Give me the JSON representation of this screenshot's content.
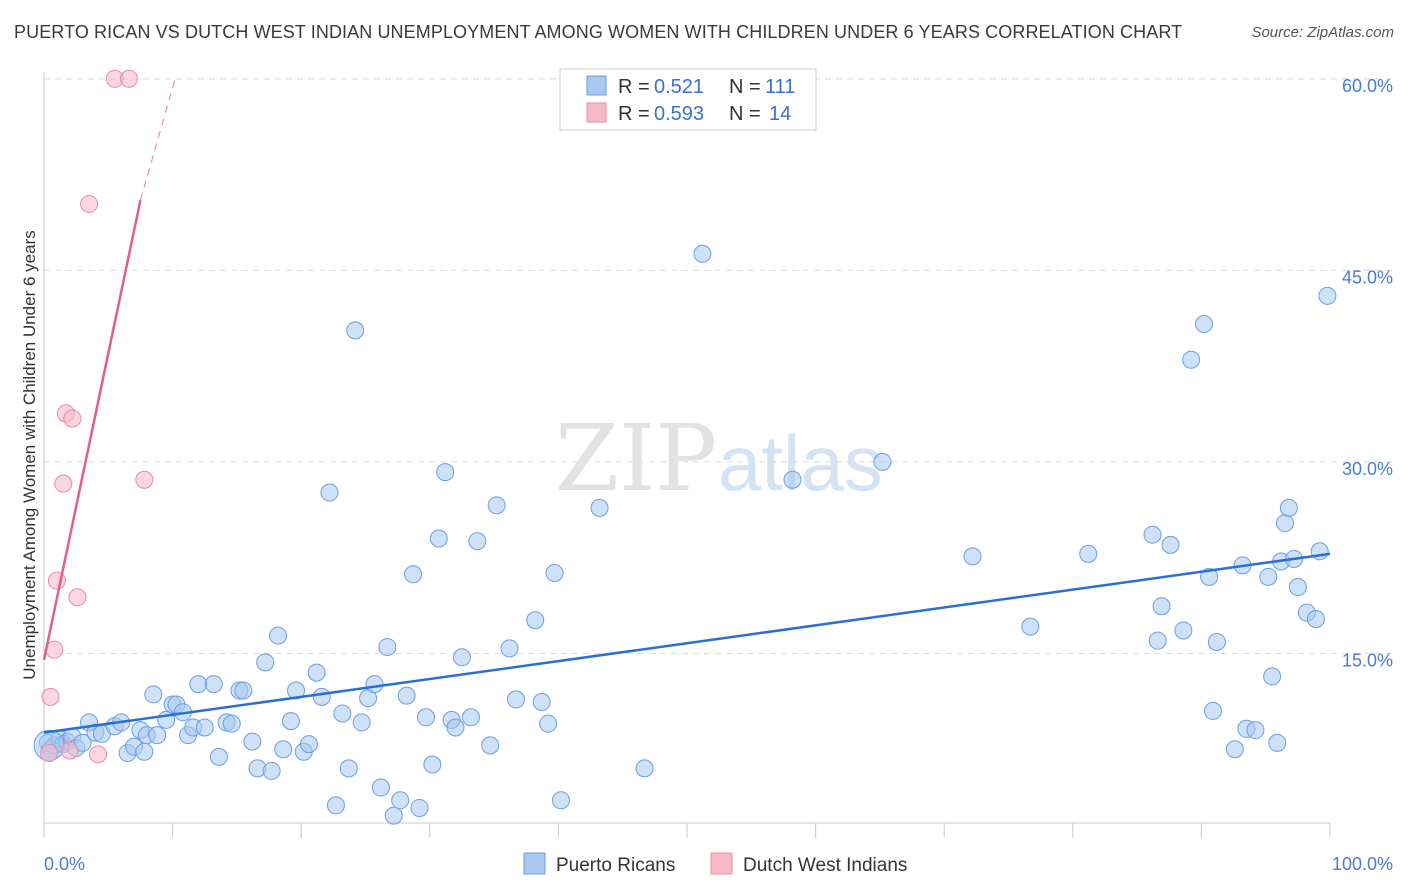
{
  "title": "PUERTO RICAN VS DUTCH WEST INDIAN UNEMPLOYMENT AMONG WOMEN WITH CHILDREN UNDER 6 YEARS CORRELATION CHART",
  "source": "Source: ZipAtlas.com",
  "watermark": {
    "zip": "ZIP",
    "atlas": "atlas"
  },
  "colors": {
    "blue_fill": "#a8c8f0",
    "blue_stroke": "#6b9ee0",
    "blue_line": "#2b6fd0",
    "pink_fill": "#f7b8c8",
    "pink_stroke": "#ec8aa6",
    "pink_line": "#e0608a",
    "grid": "#dcdcdc",
    "tick_text": "#4a7bd0"
  },
  "legend": {
    "rows": [
      {
        "r_label": "R = ",
        "r_value": "0.521",
        "n_label": "N = ",
        "n_value": "111",
        "color": "#a8c8f0"
      },
      {
        "r_label": "R = ",
        "r_value": "0.593",
        "n_label": "N = ",
        "n_value": "14",
        "color": "#f7b8c8"
      }
    ]
  },
  "chart_data": {
    "type": "scatter",
    "title": "PUERTO RICAN VS DUTCH WEST INDIAN UNEMPLOYMENT AMONG WOMEN WITH CHILDREN UNDER 6 YEARS CORRELATION CHART",
    "xlabel": "",
    "ylabel": "Unemployment Among Women with Children Under 6 years",
    "xlim": [
      0,
      100
    ],
    "ylim": [
      0,
      65
    ],
    "x_tick_labels": [
      "0.0%",
      "100.0%"
    ],
    "y_ticks": [
      15,
      30,
      45,
      60
    ],
    "y_tick_labels": [
      "15.0%",
      "30.0%",
      "45.0%",
      "60.0%"
    ],
    "grid": true,
    "legend_position": "bottom",
    "series": [
      {
        "name": "Puerto Ricans",
        "color": "#a8c8f0",
        "trend": {
          "x": [
            0,
            100
          ],
          "y": [
            8.8,
            22.8
          ]
        },
        "points": [
          [
            0.3,
            8.0
          ],
          [
            0.5,
            7.5
          ],
          [
            0.8,
            7.8
          ],
          [
            1.2,
            8.3
          ],
          [
            1.5,
            7.9
          ],
          [
            1.8,
            8.1
          ],
          [
            2.2,
            8.5
          ],
          [
            2.5,
            7.6
          ],
          [
            3.0,
            8.0
          ],
          [
            3.5,
            9.6
          ],
          [
            4.0,
            8.8
          ],
          [
            4.5,
            8.7
          ],
          [
            5.5,
            9.3
          ],
          [
            6.0,
            9.6
          ],
          [
            6.5,
            7.2
          ],
          [
            7.0,
            7.7
          ],
          [
            7.5,
            9.0
          ],
          [
            7.8,
            7.3
          ],
          [
            8.0,
            8.6
          ],
          [
            8.5,
            11.8
          ],
          [
            8.8,
            8.6
          ],
          [
            9.5,
            9.8
          ],
          [
            10.0,
            11.0
          ],
          [
            10.3,
            11.0
          ],
          [
            10.8,
            10.4
          ],
          [
            11.2,
            8.6
          ],
          [
            11.6,
            9.2
          ],
          [
            12.0,
            12.6
          ],
          [
            12.5,
            9.2
          ],
          [
            13.2,
            12.6
          ],
          [
            13.6,
            6.9
          ],
          [
            14.2,
            9.6
          ],
          [
            14.6,
            9.5
          ],
          [
            15.2,
            12.1
          ],
          [
            15.5,
            12.1
          ],
          [
            16.2,
            8.1
          ],
          [
            16.6,
            6.0
          ],
          [
            17.2,
            14.3
          ],
          [
            17.7,
            5.8
          ],
          [
            18.2,
            16.4
          ],
          [
            18.6,
            7.5
          ],
          [
            19.2,
            9.7
          ],
          [
            19.6,
            12.1
          ],
          [
            20.2,
            7.3
          ],
          [
            20.6,
            7.9
          ],
          [
            21.2,
            13.5
          ],
          [
            21.6,
            11.6
          ],
          [
            22.2,
            27.6
          ],
          [
            22.7,
            3.1
          ],
          [
            23.2,
            10.3
          ],
          [
            23.7,
            6.0
          ],
          [
            24.2,
            40.3
          ],
          [
            24.7,
            9.6
          ],
          [
            25.2,
            11.5
          ],
          [
            25.7,
            12.6
          ],
          [
            26.2,
            4.5
          ],
          [
            26.7,
            15.5
          ],
          [
            27.2,
            2.3
          ],
          [
            27.7,
            3.5
          ],
          [
            28.2,
            11.7
          ],
          [
            28.7,
            21.2
          ],
          [
            29.2,
            2.9
          ],
          [
            29.7,
            10.0
          ],
          [
            30.2,
            6.3
          ],
          [
            30.7,
            24.0
          ],
          [
            31.2,
            29.2
          ],
          [
            31.7,
            9.8
          ],
          [
            32.0,
            9.2
          ],
          [
            32.5,
            14.7
          ],
          [
            33.2,
            10.0
          ],
          [
            33.7,
            23.8
          ],
          [
            34.7,
            7.8
          ],
          [
            35.2,
            26.6
          ],
          [
            36.2,
            15.4
          ],
          [
            36.7,
            11.4
          ],
          [
            38.2,
            17.6
          ],
          [
            38.7,
            11.2
          ],
          [
            39.2,
            9.5
          ],
          [
            39.7,
            21.3
          ],
          [
            40.2,
            3.5
          ],
          [
            43.2,
            26.4
          ],
          [
            46.7,
            6.0
          ],
          [
            51.2,
            46.3
          ],
          [
            58.2,
            28.6
          ],
          [
            65.2,
            30.0
          ],
          [
            72.2,
            22.6
          ],
          [
            76.7,
            17.1
          ],
          [
            81.2,
            22.8
          ],
          [
            86.2,
            24.3
          ],
          [
            86.6,
            16.0
          ],
          [
            86.9,
            18.7
          ],
          [
            87.6,
            23.5
          ],
          [
            88.6,
            16.8
          ],
          [
            89.2,
            38.0
          ],
          [
            90.2,
            40.8
          ],
          [
            90.6,
            21.0
          ],
          [
            90.9,
            10.5
          ],
          [
            91.2,
            15.9
          ],
          [
            92.6,
            7.5
          ],
          [
            93.2,
            21.9
          ],
          [
            93.5,
            9.1
          ],
          [
            94.2,
            9.0
          ],
          [
            95.2,
            21.0
          ],
          [
            95.5,
            13.2
          ],
          [
            95.9,
            8.0
          ],
          [
            96.2,
            22.2
          ],
          [
            96.5,
            25.2
          ],
          [
            96.8,
            26.4
          ],
          [
            97.2,
            22.4
          ],
          [
            97.5,
            20.2
          ],
          [
            98.2,
            18.2
          ],
          [
            98.9,
            17.7
          ],
          [
            99.2,
            23.0
          ],
          [
            99.8,
            43.0
          ]
        ]
      },
      {
        "name": "Dutch West Indians",
        "color": "#f7b8c8",
        "trend": {
          "x": [
            0,
            7.5
          ],
          "y": [
            14.5,
            50.5
          ],
          "dashed_to": {
            "x": 10.2,
            "y": 60.0
          }
        },
        "points": [
          [
            0.4,
            7.2
          ],
          [
            0.5,
            11.6
          ],
          [
            0.8,
            15.3
          ],
          [
            1.0,
            20.7
          ],
          [
            1.5,
            28.3
          ],
          [
            1.7,
            33.8
          ],
          [
            2.0,
            7.4
          ],
          [
            2.2,
            33.4
          ],
          [
            2.6,
            19.4
          ],
          [
            3.5,
            50.2
          ],
          [
            4.2,
            7.1
          ],
          [
            5.5,
            60.0
          ],
          [
            6.6,
            60.0
          ],
          [
            7.8,
            28.6
          ]
        ]
      }
    ]
  }
}
